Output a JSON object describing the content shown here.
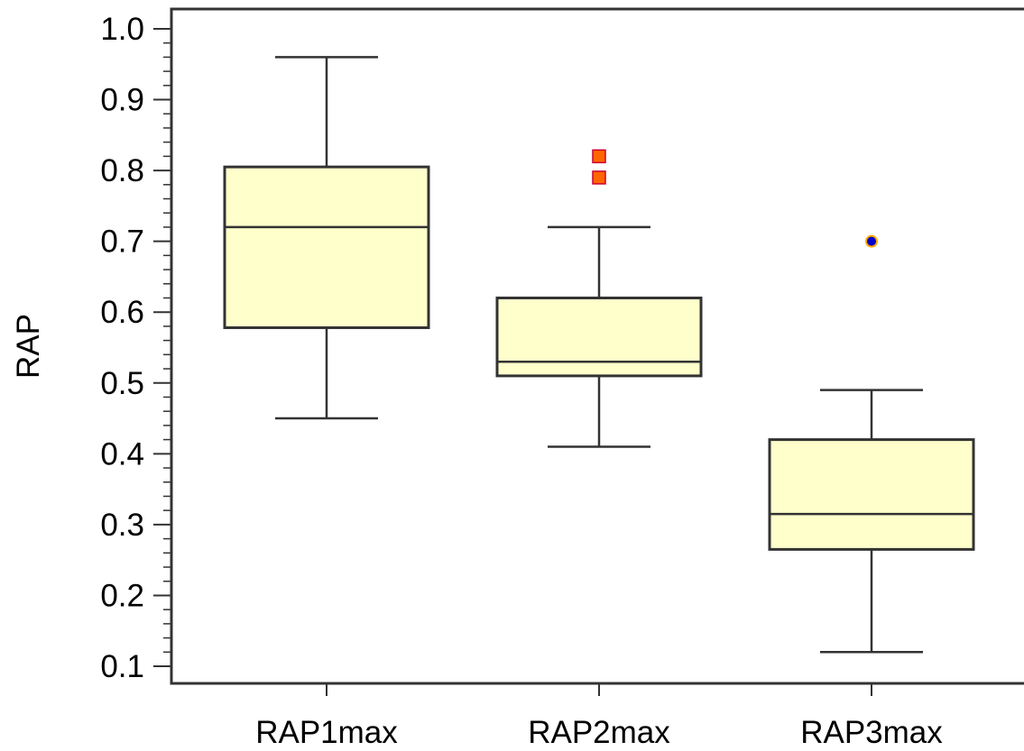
{
  "chart_data": {
    "type": "boxplot",
    "title": "",
    "xlabel": "",
    "ylabel": "RAP",
    "ylim": [
      0.08,
      1.03
    ],
    "y_ticks": [
      0.1,
      0.2,
      0.3,
      0.4,
      0.5,
      0.6,
      0.7,
      0.8,
      0.9,
      1.0
    ],
    "y_tick_labels": [
      "0.1",
      "0.2",
      "0.3",
      "0.4",
      "0.5",
      "0.6",
      "0.7",
      "0.8",
      "0.9",
      "1.0"
    ],
    "y_minor_step": 0.02,
    "grid": false,
    "box_fill": "#ffffcc",
    "line_color": "#333333",
    "categories": [
      "RAP1max",
      "RAP2max",
      "RAP3max"
    ],
    "boxes": [
      {
        "category": "RAP1max",
        "whisker_low": 0.45,
        "q1": 0.578,
        "median": 0.72,
        "q3": 0.805,
        "whisker_high": 0.96,
        "outliers": []
      },
      {
        "category": "RAP2max",
        "whisker_low": 0.41,
        "q1": 0.51,
        "median": 0.53,
        "q3": 0.62,
        "whisker_high": 0.72,
        "outliers": [
          {
            "value": 0.82,
            "marker": "square",
            "fill": "#ff6600",
            "stroke": "#cc0033"
          },
          {
            "value": 0.79,
            "marker": "square",
            "fill": "#ff6600",
            "stroke": "#cc0033"
          }
        ]
      },
      {
        "category": "RAP3max",
        "whisker_low": 0.12,
        "q1": 0.265,
        "median": 0.315,
        "q3": 0.42,
        "whisker_high": 0.49,
        "outliers": [
          {
            "value": 0.7,
            "marker": "circle",
            "fill": "#0000cc",
            "stroke": "#ffaa00"
          }
        ]
      }
    ]
  }
}
